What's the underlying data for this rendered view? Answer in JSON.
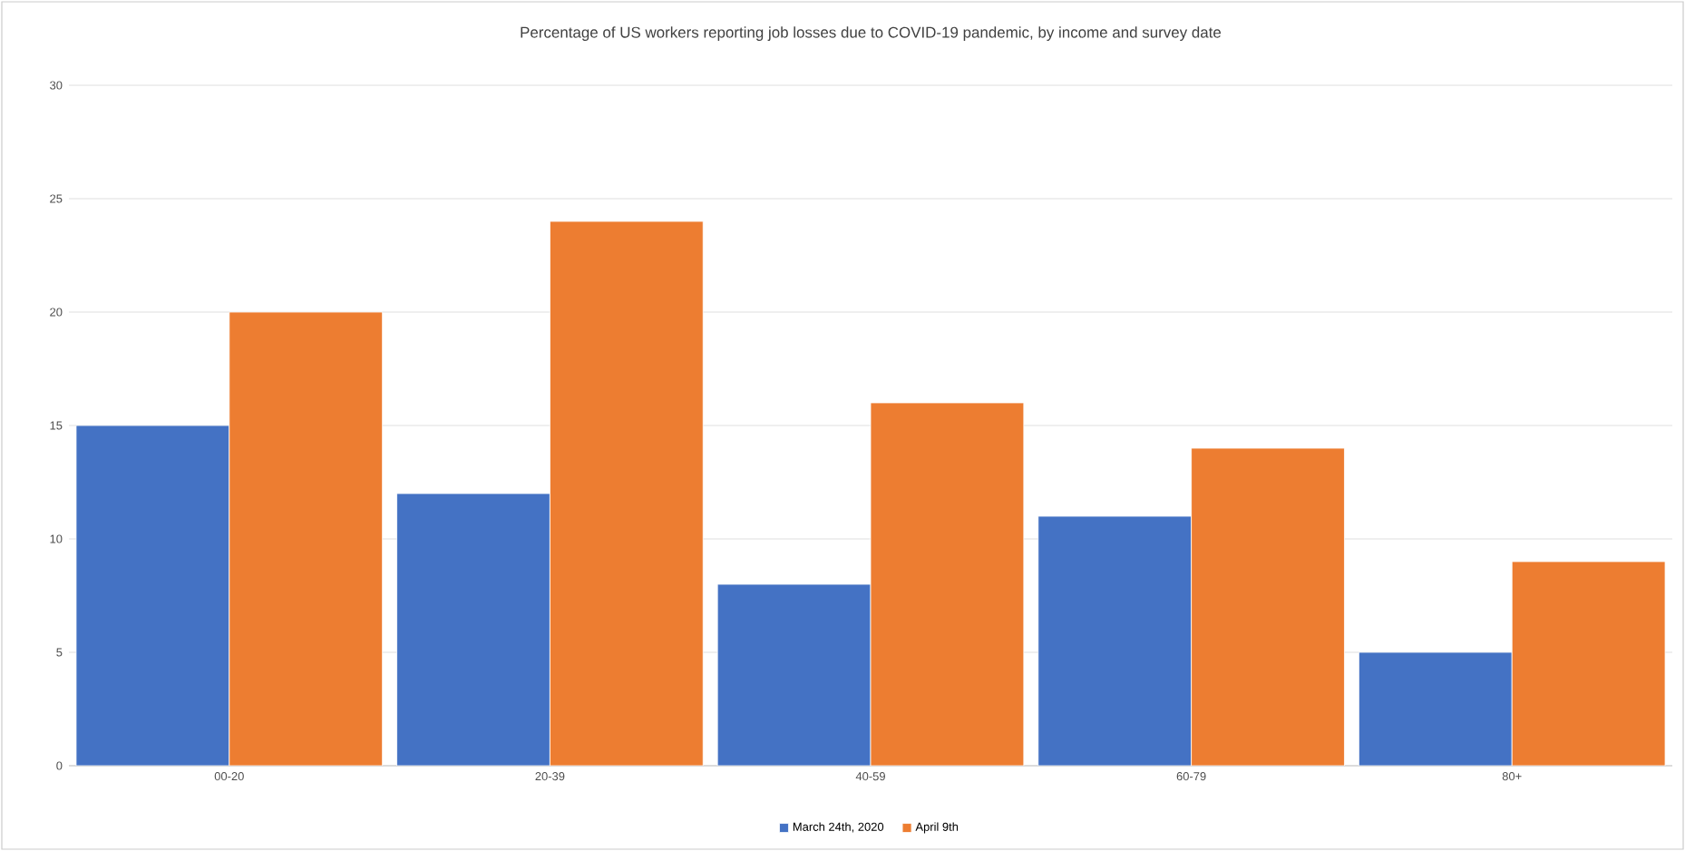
{
  "chart_data": {
    "type": "bar",
    "title": "Percentage of US workers reporting job losses due to COVID-19 pandemic, by income and survey date",
    "categories": [
      "00-20",
      "20-39",
      "40-59",
      "60-79",
      "80+"
    ],
    "series": [
      {
        "name": "March 24th, 2020",
        "color": "#4472c4",
        "values": [
          15,
          12,
          8,
          11,
          5
        ]
      },
      {
        "name": "April 9th",
        "color": "#ed7d31",
        "values": [
          20,
          24,
          16,
          14,
          9
        ]
      }
    ],
    "ylim": [
      0,
      30
    ],
    "yticks": [
      0,
      5,
      10,
      15,
      20,
      25,
      30
    ],
    "grid": "y",
    "legend": "bottom"
  }
}
